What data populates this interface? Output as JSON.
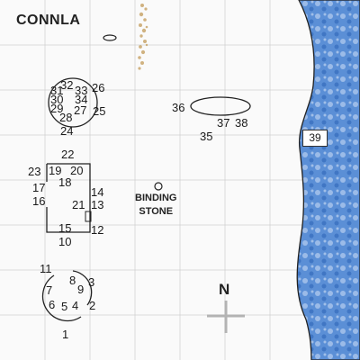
{
  "map": {
    "title": "CONNLA",
    "landmark": {
      "line1": "BINDING",
      "line2": "STONE"
    },
    "compass": {
      "label": "N"
    },
    "callout": "39",
    "colors": {
      "sea": "#3f79c9",
      "sea_light": "#cfe0f5",
      "grid": "#d9d9d9",
      "ink": "#1a1a1a"
    },
    "site_numbers": [
      "1",
      "2",
      "3",
      "4",
      "5",
      "6",
      "7",
      "8",
      "9",
      "10",
      "11",
      "12",
      "13",
      "14",
      "15",
      "16",
      "17",
      "18",
      "19",
      "20",
      "21",
      "22",
      "23",
      "24",
      "25",
      "26",
      "27",
      "28",
      "29",
      "30",
      "31",
      "32",
      "33",
      "34",
      "35",
      "36",
      "37",
      "38"
    ]
  }
}
